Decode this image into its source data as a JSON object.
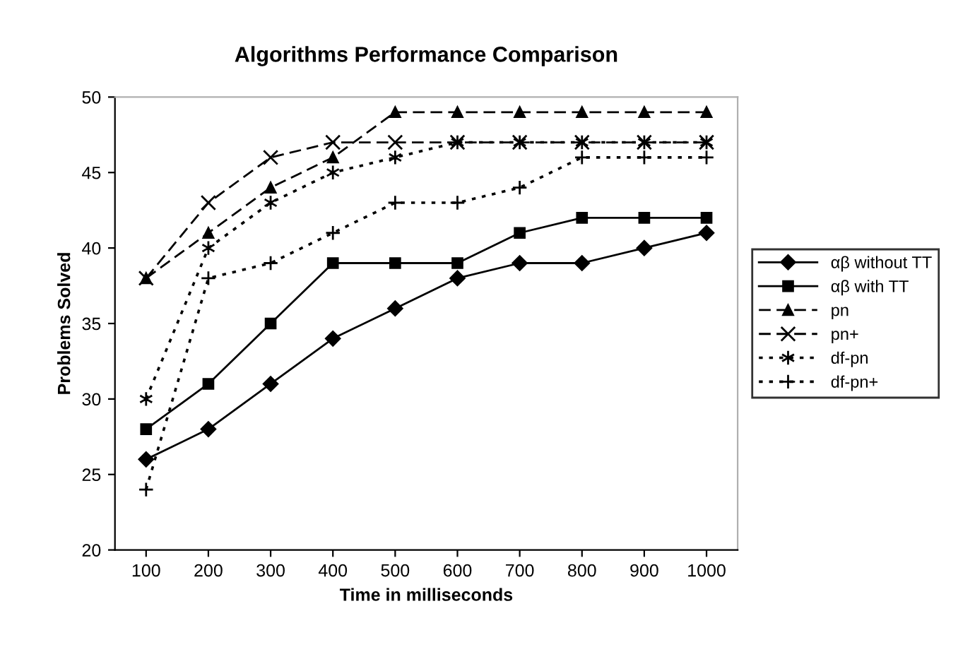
{
  "chart_data": {
    "type": "line",
    "title": "Algorithms Performance Comparison",
    "xlabel": "Time in milliseconds",
    "ylabel": "Problems Solved",
    "categories": [
      "100",
      "200",
      "300",
      "400",
      "500",
      "600",
      "700",
      "800",
      "900",
      "1000"
    ],
    "ylim": [
      20,
      50
    ],
    "yticks": [
      20,
      25,
      30,
      35,
      40,
      45,
      50
    ],
    "grid": false,
    "legend": "right",
    "series": [
      {
        "name": "αβ without TT",
        "color": "#000000",
        "marker": "diamond",
        "line_style": "solid",
        "values": [
          26,
          28,
          31,
          34,
          36,
          38,
          39,
          39,
          40,
          41
        ]
      },
      {
        "name": "αβ with TT",
        "color": "#000000",
        "marker": "square",
        "line_style": "solid",
        "values": [
          28,
          31,
          35,
          39,
          39,
          39,
          41,
          42,
          42,
          42
        ]
      },
      {
        "name": "pn",
        "color": "#000000",
        "marker": "triangle",
        "line_style": "dashed",
        "values": [
          38,
          41,
          44,
          46,
          49,
          49,
          49,
          49,
          49,
          49
        ]
      },
      {
        "name": "pn+",
        "color": "#000000",
        "marker": "cross",
        "line_style": "dashed",
        "values": [
          38,
          43,
          46,
          47,
          47,
          47,
          47,
          47,
          47,
          47
        ]
      },
      {
        "name": "df-pn",
        "color": "#000000",
        "marker": "cross",
        "line_style": "dotted",
        "values": [
          30,
          40,
          43,
          45,
          46,
          47,
          47,
          47,
          47,
          47
        ]
      },
      {
        "name": "df-pn+",
        "color": "#000000",
        "marker": "plus",
        "line_style": "dotted",
        "values": [
          24,
          38,
          39,
          41,
          43,
          43,
          44,
          46,
          46,
          46
        ]
      }
    ]
  }
}
